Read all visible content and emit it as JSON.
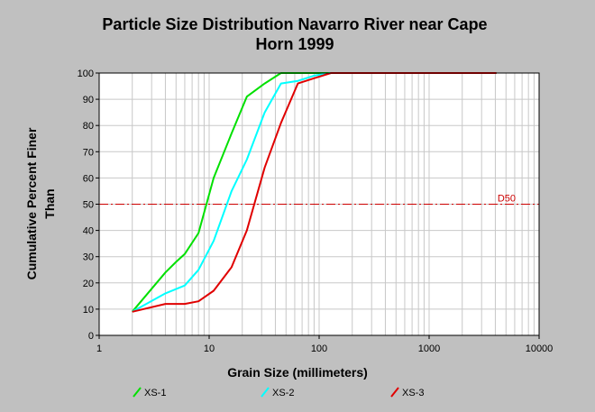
{
  "chart_data": {
    "type": "line",
    "title_lines": [
      "Particle Size Distribution Navarro River near Cape",
      "Horn 1999"
    ],
    "xlabel": "Grain Size (millimeters)",
    "ylabel_lines": [
      "Cumulative Percent Finer",
      "Than"
    ],
    "x_scale": "log",
    "xlim": [
      1,
      10000
    ],
    "ylim": [
      0,
      100
    ],
    "x_ticks": [
      1,
      10,
      100,
      1000,
      10000
    ],
    "x_tick_labels": [
      "1",
      "10",
      "100",
      "1000",
      "10000"
    ],
    "y_ticks": [
      0,
      10,
      20,
      30,
      40,
      50,
      60,
      70,
      80,
      90,
      100
    ],
    "y_tick_labels": [
      "0",
      "10",
      "20",
      "30",
      "40",
      "50",
      "60",
      "70",
      "80",
      "90",
      "100"
    ],
    "grid": true,
    "legend_position": "bottom",
    "reference_line": {
      "label": "D50",
      "y": 50,
      "color": "#cc0000"
    },
    "series": [
      {
        "name": "XS-1",
        "color": "#00e000",
        "x": [
          2,
          4,
          5,
          6,
          8,
          11,
          16,
          22,
          32,
          45,
          64,
          90,
          128,
          4096
        ],
        "y": [
          9,
          24,
          28,
          31,
          39,
          60,
          77,
          91,
          96,
          100,
          100,
          100,
          100,
          100
        ]
      },
      {
        "name": "XS-2",
        "color": "#00ffff",
        "x": [
          2,
          4,
          6,
          8,
          11,
          16,
          22,
          32,
          45,
          64,
          90,
          128,
          4096
        ],
        "y": [
          9,
          16,
          19,
          25,
          36,
          55,
          67,
          85,
          96,
          97,
          99,
          100,
          100
        ]
      },
      {
        "name": "XS-3",
        "color": "#e00000",
        "x": [
          2,
          4,
          6,
          8,
          11,
          16,
          22,
          32,
          45,
          64,
          90,
          128,
          4096
        ],
        "y": [
          9,
          12,
          12,
          13,
          17,
          26,
          40,
          64,
          81,
          96,
          98,
          100,
          100
        ]
      }
    ]
  }
}
